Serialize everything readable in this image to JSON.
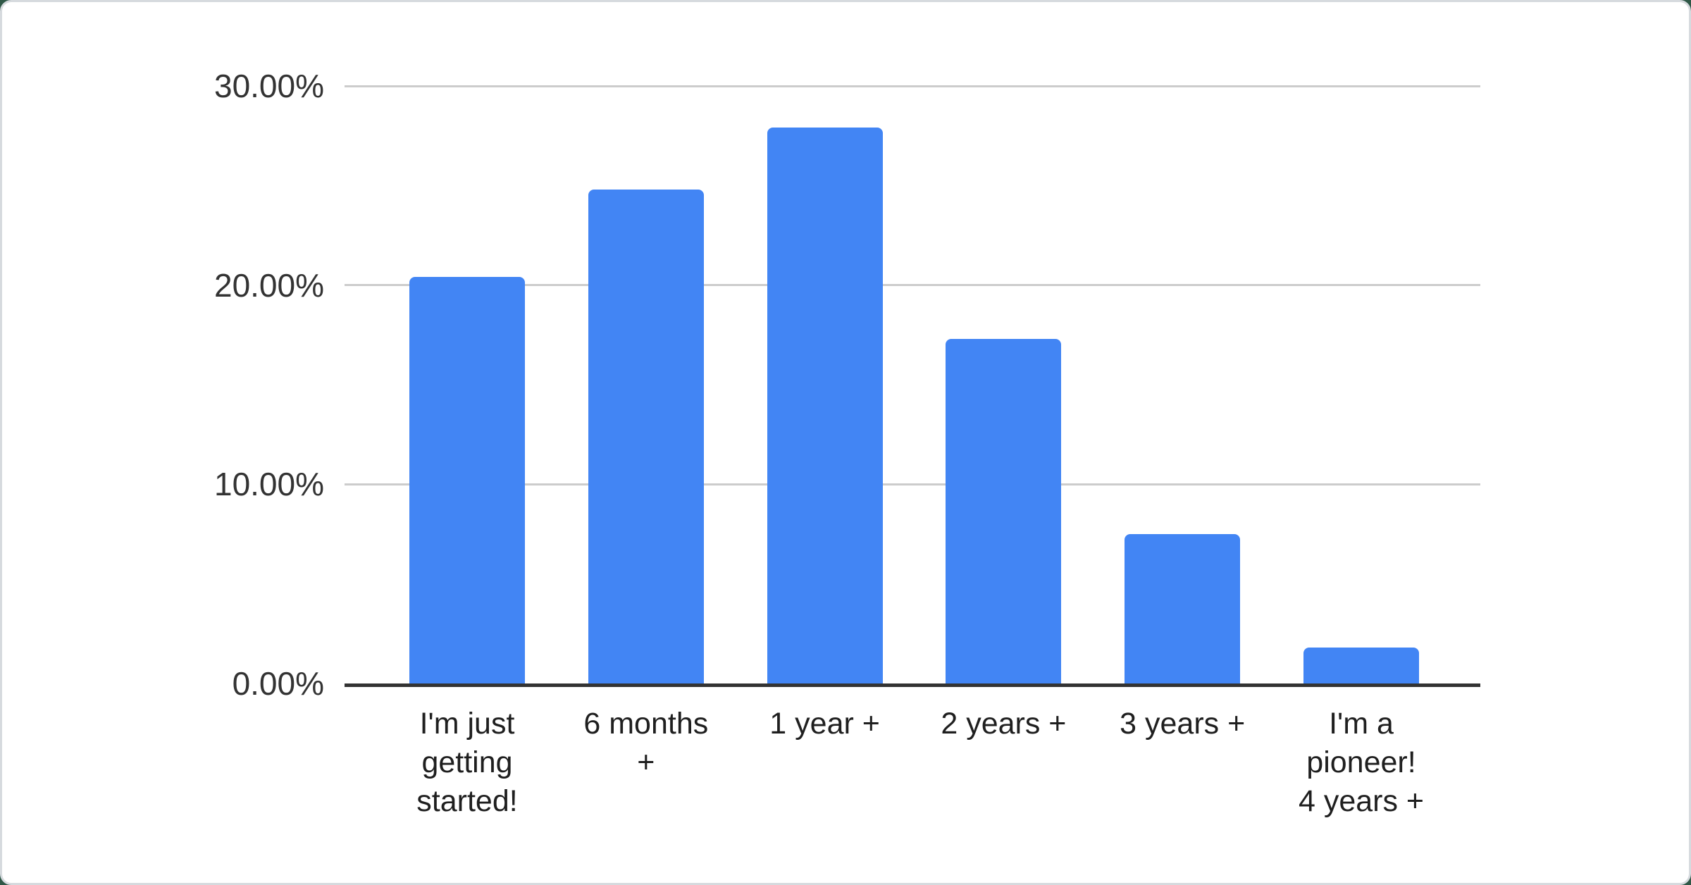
{
  "chart_data": {
    "type": "bar",
    "title": "",
    "xlabel": "",
    "ylabel": "",
    "categories": [
      "I'm just getting started!",
      "6 months +",
      "1 year +",
      "2 years +",
      "3 years +",
      "I'm a pioneer! 4 years +"
    ],
    "category_label_lines": [
      "I'm just\ngetting\nstarted!",
      "6 months\n+",
      "1 year +",
      "2 years +",
      "3 years +",
      "I'm a\npioneer!\n4 years +"
    ],
    "values": [
      20.4,
      24.8,
      27.9,
      17.3,
      7.5,
      1.8
    ],
    "value_unit": "%",
    "ylim": [
      0,
      30
    ],
    "y_ticks": [
      {
        "value": 0,
        "label": "0.00%"
      },
      {
        "value": 10,
        "label": "10.00%"
      },
      {
        "value": 20,
        "label": "20.00%"
      },
      {
        "value": 30,
        "label": "30.00%"
      }
    ],
    "grid": true,
    "legend": "none",
    "series_color": "#4285f4"
  },
  "colors": {
    "bar": "#4285f4",
    "gridline": "#cccccc",
    "baseline": "#333333",
    "tick_text": "#333333",
    "label_text": "#1f1f1f",
    "card_background": "#ffffff",
    "card_border": "#d6dade",
    "page_background": "#2f5847"
  }
}
